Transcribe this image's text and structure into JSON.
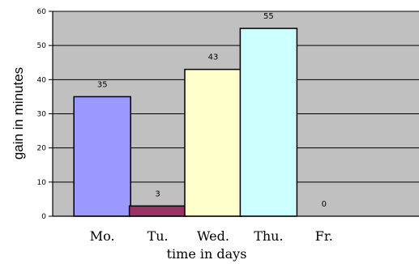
{
  "chart_data": {
    "type": "bar",
    "categories": [
      "Mo.",
      "Tu.",
      "Wed.",
      "Thu.",
      "Fr."
    ],
    "values": [
      35,
      3,
      43,
      55,
      0
    ],
    "data_labels": [
      "35",
      "3",
      "43",
      "55",
      "0"
    ],
    "bar_colors": [
      "#9999ff",
      "#993366",
      "#ffffcc",
      "#ccffff",
      "#ffffff"
    ],
    "plot_background": "#c0c0c0",
    "xlabel": "time in days",
    "ylabel": "gain in minutes",
    "ylim": [
      0,
      60
    ],
    "yticks": [
      0,
      10,
      20,
      30,
      40,
      50,
      60
    ],
    "grid": true,
    "legend": "none"
  }
}
